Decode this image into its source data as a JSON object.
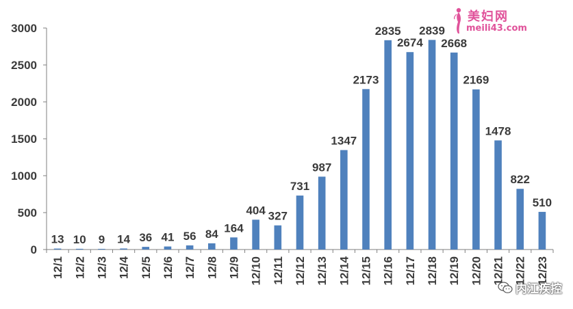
{
  "chart_data": {
    "type": "bar",
    "categories": [
      "12/1",
      "12/2",
      "12/3",
      "12/4",
      "12/5",
      "12/6",
      "12/7",
      "12/8",
      "12/9",
      "12/10",
      "12/11",
      "12/12",
      "12/13",
      "12/14",
      "12/15",
      "12/16",
      "12/17",
      "12/18",
      "12/19",
      "12/20",
      "12/21",
      "12/22",
      "12/23"
    ],
    "values": [
      13,
      10,
      9,
      14,
      36,
      41,
      56,
      84,
      164,
      404,
      327,
      731,
      987,
      1347,
      2173,
      2835,
      2674,
      2839,
      2668,
      2169,
      1478,
      822,
      510
    ],
    "title": "",
    "xlabel": "",
    "ylabel": "",
    "ylim": [
      0,
      3000
    ],
    "yticks": [
      0,
      500,
      1000,
      1500,
      2000,
      2500,
      3000
    ],
    "grid": false,
    "legend": "none",
    "bar_color": "#4f81bd",
    "axis_color": "#7f7f7f",
    "label_color": "#3a3a3a"
  },
  "watermark": {
    "brand": "美妇网",
    "domain": "meili43.com",
    "color": "#e0529a",
    "icon": "woman-figure-icon"
  },
  "source_tag": {
    "text": "内江疾控",
    "icon": "wechat-icon"
  }
}
